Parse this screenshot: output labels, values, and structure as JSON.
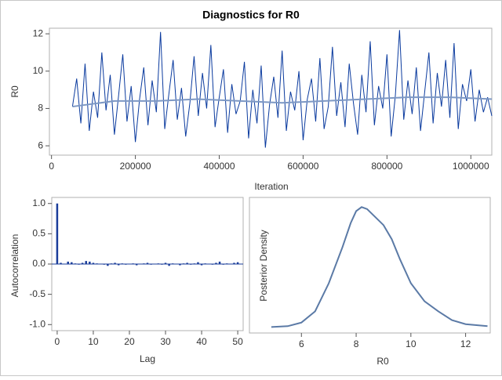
{
  "title": "Diagnostics for R0",
  "chart_data": [
    {
      "type": "line",
      "xlabel": "Iteration",
      "ylabel": "R0",
      "xlim": [
        -5000,
        1050000
      ],
      "xticks": [
        0,
        200000,
        400000,
        600000,
        800000,
        1000000
      ],
      "ylim": [
        5.5,
        12.3
      ],
      "yticks": [
        6,
        8,
        10,
        12
      ],
      "series": [
        {
          "color": "#0a3a9e",
          "x": [
            50000,
            60000,
            70000,
            80000,
            90000,
            100000,
            110000,
            120000,
            130000,
            140000,
            150000,
            160000,
            170000,
            180000,
            190000,
            200000,
            210000,
            220000,
            230000,
            240000,
            250000,
            260000,
            270000,
            280000,
            290000,
            300000,
            310000,
            320000,
            330000,
            340000,
            350000,
            360000,
            370000,
            380000,
            390000,
            400000,
            410000,
            420000,
            430000,
            440000,
            450000,
            460000,
            470000,
            480000,
            490000,
            500000,
            510000,
            520000,
            530000,
            540000,
            550000,
            560000,
            570000,
            580000,
            590000,
            600000,
            610000,
            620000,
            630000,
            640000,
            650000,
            660000,
            670000,
            680000,
            690000,
            700000,
            710000,
            720000,
            730000,
            740000,
            750000,
            760000,
            770000,
            780000,
            790000,
            800000,
            810000,
            820000,
            830000,
            840000,
            850000,
            860000,
            870000,
            880000,
            890000,
            900000,
            910000,
            920000,
            930000,
            940000,
            950000,
            960000,
            970000,
            980000,
            990000,
            1000000,
            1010000,
            1020000,
            1030000,
            1040000,
            1050000
          ],
          "values": [
            8.1,
            9.6,
            7.2,
            10.4,
            6.8,
            8.9,
            7.5,
            11.0,
            7.9,
            9.8,
            6.6,
            8.7,
            10.9,
            7.3,
            9.2,
            6.2,
            8.5,
            10.2,
            7.1,
            9.5,
            7.8,
            12.1,
            6.9,
            8.8,
            10.6,
            7.4,
            9.1,
            6.5,
            8.3,
            10.8,
            7.6,
            9.9,
            8.0,
            11.4,
            7.0,
            8.6,
            10.1,
            6.7,
            9.3,
            7.7,
            8.4,
            10.5,
            6.4,
            9.0,
            7.2,
            10.3,
            5.9,
            8.2,
            9.7,
            7.5,
            11.1,
            6.8,
            8.9,
            7.9,
            10.0,
            6.3,
            8.5,
            9.6,
            7.3,
            10.7,
            6.9,
            8.1,
            11.3,
            7.6,
            9.4,
            7.0,
            10.4,
            8.3,
            6.6,
            9.8,
            7.8,
            11.6,
            7.1,
            9.2,
            8.0,
            10.9,
            6.5,
            8.7,
            12.2,
            7.4,
            9.5,
            7.7,
            10.2,
            6.8,
            8.9,
            11.0,
            7.2,
            9.9,
            8.1,
            10.6,
            7.5,
            11.5,
            6.9,
            9.3,
            8.4,
            10.1,
            7.3,
            9.0,
            7.8,
            8.6,
            7.6
          ]
        },
        {
          "color": "#7d98c4",
          "x": [
            50000,
            150000,
            250000,
            350000,
            450000,
            550000,
            650000,
            750000,
            850000,
            950000,
            1050000
          ],
          "values": [
            8.1,
            8.4,
            8.4,
            8.5,
            8.4,
            8.3,
            8.4,
            8.5,
            8.6,
            8.6,
            8.5
          ]
        }
      ]
    },
    {
      "type": "bar",
      "xlabel": "Lag",
      "ylabel": "Autocorrelation",
      "color": "#1a3d9a",
      "xlim": [
        -1.5,
        51.5
      ],
      "xticks": [
        0,
        10,
        20,
        30,
        40,
        50
      ],
      "ylim": [
        -1.1,
        1.1
      ],
      "yticks": [
        {
          "value": -1,
          "label": "-1.0"
        },
        {
          "value": -0.5,
          "label": "-0.5"
        },
        {
          "value": 0,
          "label": "0.0"
        },
        {
          "value": 0.5,
          "label": "0.5"
        },
        {
          "value": 1,
          "label": "1.0"
        }
      ],
      "x": [
        0,
        1,
        2,
        3,
        4,
        5,
        6,
        7,
        8,
        9,
        10,
        11,
        12,
        13,
        14,
        15,
        16,
        17,
        18,
        19,
        20,
        21,
        22,
        23,
        24,
        25,
        26,
        27,
        28,
        29,
        30,
        31,
        32,
        33,
        34,
        35,
        36,
        37,
        38,
        39,
        40,
        41,
        42,
        43,
        44,
        45,
        46,
        47,
        48,
        49,
        50
      ],
      "values": [
        1.0,
        0.02,
        0.0,
        0.04,
        0.03,
        0.01,
        -0.01,
        0.02,
        0.05,
        0.04,
        0.02,
        0.01,
        0.0,
        -0.01,
        -0.03,
        0.01,
        0.02,
        -0.02,
        0.01,
        -0.01,
        0.0,
        0.01,
        -0.02,
        0.0,
        0.01,
        0.02,
        -0.01,
        0.0,
        0.01,
        -0.01,
        0.02,
        -0.03,
        0.01,
        0.0,
        -0.02,
        0.01,
        0.02,
        -0.01,
        0.01,
        0.03,
        -0.02,
        0.01,
        0.0,
        -0.01,
        0.02,
        0.04,
        -0.01,
        0.01,
        0.0,
        0.02,
        0.03
      ]
    },
    {
      "type": "line",
      "xlabel": "R0",
      "ylabel": "Posterior Density",
      "xlim": [
        4.1,
        12.9
      ],
      "xticks": [
        6,
        8,
        10,
        12
      ],
      "ylim": [
        -0.014,
        0.324
      ],
      "series": [
        {
          "color": "#5b7aa6",
          "x": [
            4.9,
            5.5,
            6.0,
            6.5,
            7.0,
            7.5,
            7.8,
            8.0,
            8.2,
            8.4,
            8.7,
            9.0,
            9.3,
            9.6,
            10.0,
            10.5,
            11.0,
            11.5,
            12.0,
            12.8
          ],
          "values": [
            0.001,
            0.003,
            0.012,
            0.04,
            0.11,
            0.2,
            0.26,
            0.29,
            0.3,
            0.295,
            0.275,
            0.255,
            0.22,
            0.17,
            0.11,
            0.065,
            0.04,
            0.018,
            0.008,
            0.003
          ]
        }
      ]
    }
  ]
}
